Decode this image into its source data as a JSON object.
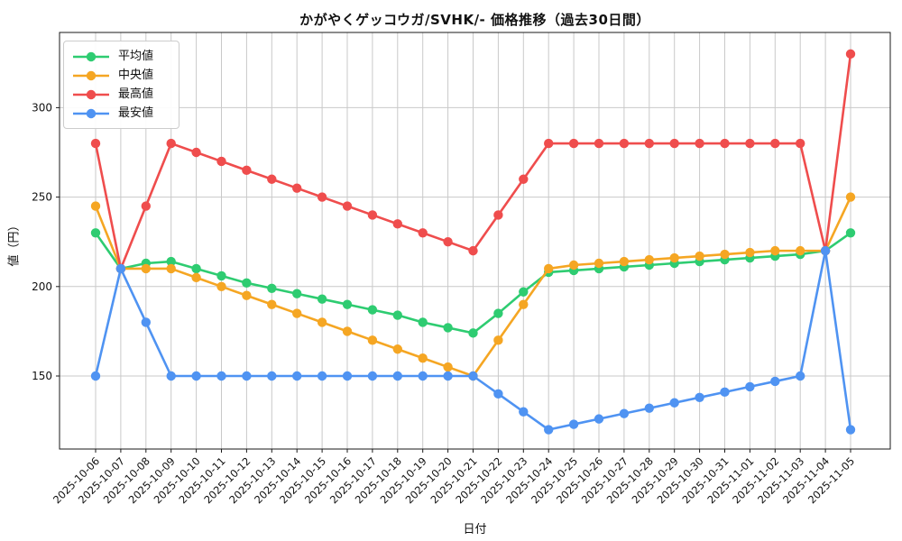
{
  "chart_data": {
    "type": "line",
    "title": "かがやくゲッコウガ/SVHK/- 価格推移（過去30日間）",
    "xlabel": "日付",
    "ylabel": "値（円）",
    "x": [
      "2025-10-06",
      "2025-10-07",
      "2025-10-08",
      "2025-10-09",
      "2025-10-10",
      "2025-10-11",
      "2025-10-12",
      "2025-10-13",
      "2025-10-14",
      "2025-10-15",
      "2025-10-16",
      "2025-10-17",
      "2025-10-18",
      "2025-10-19",
      "2025-10-20",
      "2025-10-21",
      "2025-10-22",
      "2025-10-23",
      "2025-10-24",
      "2025-10-25",
      "2025-10-26",
      "2025-10-27",
      "2025-10-28",
      "2025-10-29",
      "2025-10-30",
      "2025-10-31",
      "2025-11-01",
      "2025-11-02",
      "2025-11-03",
      "2025-11-04",
      "2025-11-05"
    ],
    "yticks": [
      150,
      200,
      250,
      300
    ],
    "ylim": [
      109,
      342
    ],
    "grid": true,
    "grid_color": "#c9c9c9",
    "background": "#ffffff",
    "legend_position": "upper-left",
    "series": [
      {
        "key": "average",
        "name": "平均値",
        "color": "#2ecc71",
        "values": [
          230,
          210,
          213,
          214,
          210,
          206,
          202,
          199,
          196,
          193,
          190,
          187,
          184,
          180,
          177,
          174,
          185,
          197,
          208,
          209,
          210,
          211,
          212,
          213,
          214,
          215,
          216,
          217,
          218,
          220,
          230
        ]
      },
      {
        "key": "median",
        "name": "中央値",
        "color": "#f5a623",
        "values": [
          245,
          210,
          210,
          210,
          205,
          200,
          195,
          190,
          185,
          180,
          175,
          170,
          165,
          160,
          155,
          150,
          170,
          190,
          210,
          212,
          213,
          214,
          215,
          216,
          217,
          218,
          219,
          220,
          220,
          220,
          250
        ]
      },
      {
        "key": "max",
        "name": "最高値",
        "color": "#ef4d4d",
        "values": [
          280,
          210,
          245,
          280,
          275,
          270,
          265,
          260,
          255,
          250,
          245,
          240,
          235,
          230,
          225,
          220,
          240,
          260,
          280,
          280,
          280,
          280,
          280,
          280,
          280,
          280,
          280,
          280,
          280,
          220,
          330
        ]
      },
      {
        "key": "min",
        "name": "最安値",
        "color": "#4f93f2",
        "values": [
          150,
          210,
          180,
          150,
          150,
          150,
          150,
          150,
          150,
          150,
          150,
          150,
          150,
          150,
          150,
          150,
          140,
          130,
          120,
          123,
          126,
          129,
          132,
          135,
          138,
          141,
          144,
          147,
          150,
          220,
          120
        ]
      }
    ]
  }
}
